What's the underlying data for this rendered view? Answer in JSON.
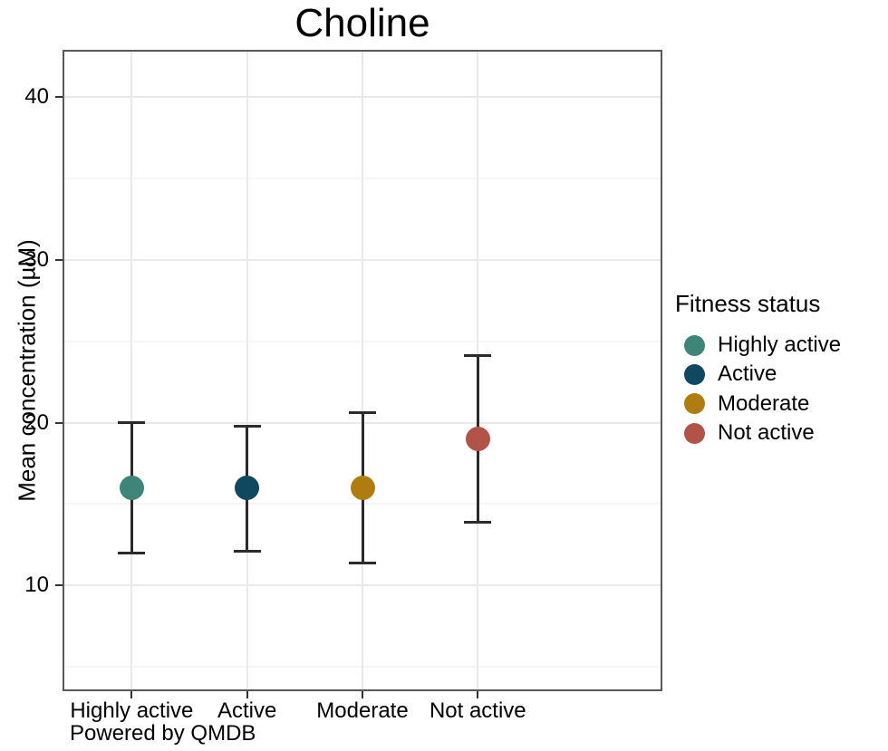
{
  "chart_data": {
    "type": "scatter",
    "title": "Choline",
    "xlabel": "",
    "ylabel": "Mean concentration (µM)",
    "caption": "Powered by QMDB",
    "legend_title": "Fitness status",
    "legend_position": "right",
    "grid": "on",
    "ylim": [
      3.5,
      42.9
    ],
    "yticks": [
      10,
      20,
      30,
      40
    ],
    "yticks_minor": [
      5,
      15,
      25,
      35
    ],
    "categories": [
      "Highly active",
      "Active",
      "Moderate",
      "Not active"
    ],
    "series": [
      {
        "name": "Highly active",
        "mean": 16.0,
        "lower": 12.0,
        "upper": 20.0,
        "color": "#3D8578"
      },
      {
        "name": "Active",
        "mean": 16.0,
        "lower": 12.1,
        "upper": 19.8,
        "color": "#10485F"
      },
      {
        "name": "Moderate",
        "mean": 16.0,
        "lower": 11.4,
        "upper": 20.6,
        "color": "#B07C0F"
      },
      {
        "name": "Not active",
        "mean": 19.0,
        "lower": 13.9,
        "upper": 24.1,
        "color": "#B25349"
      }
    ],
    "error_bar_color": "#2B2B2B"
  },
  "colors": {
    "panel_border": "#595959",
    "grid_major": "#E9E9E9",
    "grid_minor": "#F6F6F6",
    "text": "#000000"
  }
}
